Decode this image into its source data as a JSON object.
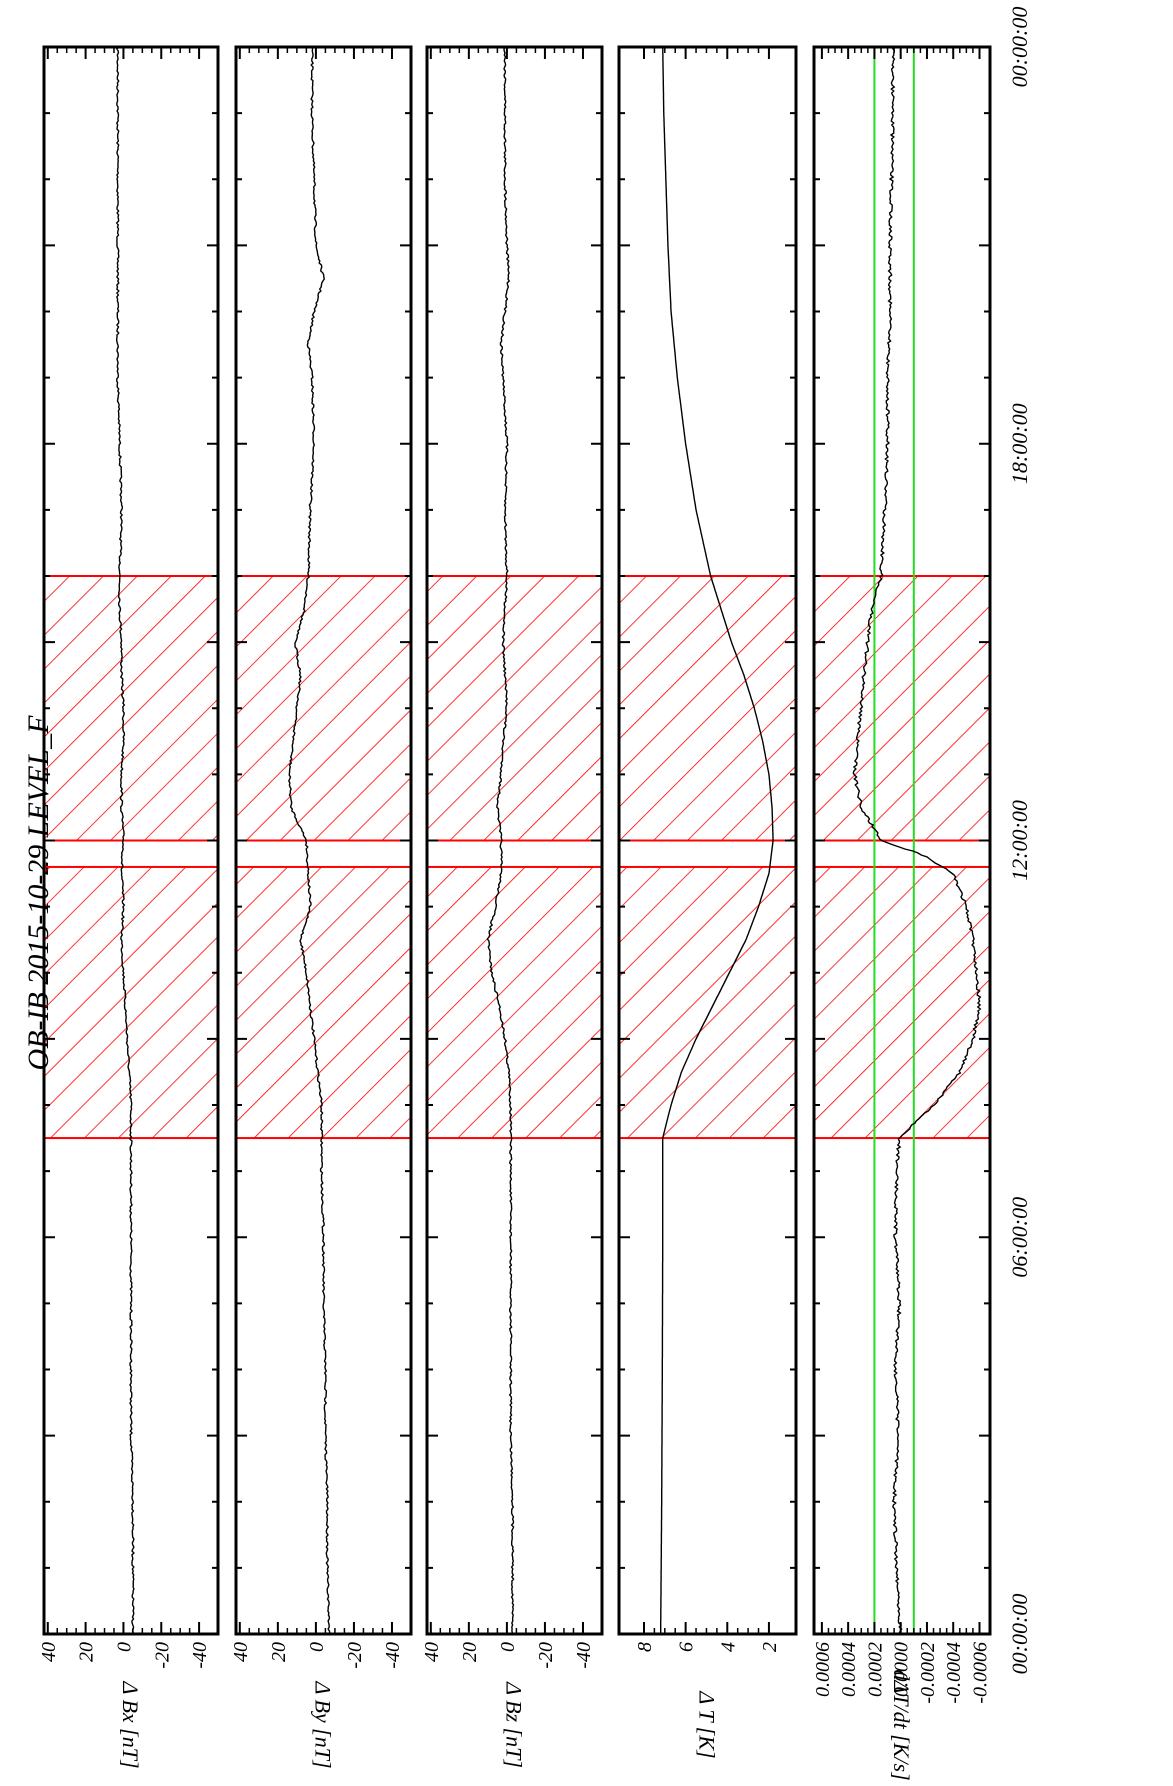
{
  "title": "OB-IB  2015-10-29 LEVEL_F",
  "time_ticks": [
    "00:00:00",
    "06:00:00",
    "12:00:00",
    "18:00:00",
    "00:00:00"
  ],
  "colors": {
    "trace": "#000000",
    "hatch": "#ff0000",
    "threshold": "#22dd22",
    "frame": "#000000"
  },
  "chart_data": [
    {
      "type": "line",
      "name": "bx",
      "ylabel": "Δ Bx [nT]",
      "yticks": [
        "40",
        "20",
        "0",
        "-20",
        "-40"
      ],
      "ylim": [
        -50,
        42
      ],
      "x_unit": "hours",
      "x": [
        0,
        1,
        2,
        3,
        4,
        5,
        6,
        7,
        8,
        8.5,
        9,
        9.5,
        10,
        10.5,
        11,
        11.5,
        12,
        12.5,
        13,
        13.5,
        14,
        14.5,
        15,
        15.5,
        16,
        17,
        18,
        19,
        20,
        21,
        22,
        23,
        24
      ],
      "values": [
        -5,
        -5,
        -5,
        -4,
        -4,
        -4,
        -4,
        -4,
        -4,
        -3,
        -2,
        -1,
        0,
        1,
        0,
        1,
        0,
        1,
        1,
        0,
        0,
        1,
        1,
        2,
        2,
        1,
        2,
        3,
        3,
        3,
        3,
        3,
        3
      ]
    },
    {
      "type": "line",
      "name": "by",
      "ylabel": "Δ By [nT]",
      "yticks": [
        "40",
        "20",
        "0",
        "-20",
        "-40"
      ],
      "ylim": [
        -50,
        42
      ],
      "x_unit": "hours",
      "x": [
        0,
        1,
        2,
        3,
        4,
        5,
        6,
        7,
        8,
        8.5,
        9,
        9.5,
        10,
        10.5,
        11,
        11.5,
        12,
        12.5,
        13,
        13.5,
        14,
        14.5,
        15,
        15.5,
        16,
        17,
        18,
        19,
        19.5,
        20,
        20.5,
        21,
        22,
        23,
        24
      ],
      "values": [
        -7,
        -6,
        -6,
        -5,
        -5,
        -4,
        -4,
        -3,
        -3,
        -1,
        1,
        3,
        5,
        8,
        3,
        4,
        5,
        13,
        14,
        12,
        10,
        8,
        11,
        6,
        4,
        3,
        1,
        2,
        4,
        1,
        -4,
        0,
        1,
        2,
        2
      ]
    },
    {
      "type": "line",
      "name": "bz",
      "ylabel": "Δ Bz [nT]",
      "yticks": [
        "40",
        "20",
        "0",
        "-20",
        "-40"
      ],
      "ylim": [
        -50,
        42
      ],
      "x_unit": "hours",
      "x": [
        0,
        1,
        2,
        3,
        4,
        5,
        6,
        7,
        8,
        8.5,
        9,
        9.5,
        10,
        10.5,
        11,
        11.5,
        12,
        12.5,
        13,
        13.5,
        14,
        14.5,
        15,
        15.5,
        16,
        17,
        18,
        19,
        19.5,
        20,
        20.5,
        21,
        22,
        23,
        24
      ],
      "values": [
        -3,
        -3,
        -3,
        -2,
        -2,
        -2,
        -2,
        -2,
        -2,
        -1,
        1,
        4,
        8,
        10,
        6,
        3,
        3,
        5,
        3,
        2,
        0,
        1,
        2,
        1,
        0,
        1,
        0,
        2,
        3,
        1,
        -1,
        0,
        1,
        1,
        1
      ]
    },
    {
      "type": "line",
      "name": "dt",
      "ylabel": "Δ T [K]",
      "yticks": [
        "8",
        "6",
        "4",
        "2"
      ],
      "ylim": [
        0.7,
        9.2
      ],
      "x_unit": "hours",
      "x": [
        0,
        2,
        4,
        6,
        7,
        7.5,
        8,
        8.5,
        9,
        9.5,
        10,
        10.5,
        11,
        11.5,
        12,
        12.5,
        13,
        13.5,
        14,
        14.5,
        15,
        15.5,
        16,
        17,
        18,
        19,
        20,
        21,
        22,
        23,
        24
      ],
      "values": [
        7.2,
        7.15,
        7.12,
        7.1,
        7.1,
        7.1,
        6.7,
        6.2,
        5.5,
        4.7,
        3.9,
        3.1,
        2.5,
        2.0,
        1.8,
        1.85,
        2.0,
        2.3,
        2.7,
        3.2,
        3.8,
        4.3,
        4.8,
        5.5,
        6.0,
        6.4,
        6.7,
        6.85,
        6.95,
        7.05,
        7.1
      ]
    },
    {
      "type": "line",
      "name": "ddt",
      "ylabel": "dΔT/dt [K/s]",
      "yticks": [
        "0.0006",
        "0.0004",
        "0.0002",
        "0.0000",
        "-0.0002",
        "-0.0004",
        "-0.0006"
      ],
      "ylim": [
        -0.00068,
        0.00066
      ],
      "threshold_lines": [
        0.0002,
        -0.0001
      ],
      "x_unit": "hours",
      "x": [
        0,
        1,
        2,
        3,
        4,
        5,
        6,
        7,
        7.5,
        8,
        8.5,
        9,
        9.5,
        10,
        10.5,
        11,
        11.5,
        11.8,
        12,
        12.5,
        13,
        13.5,
        14,
        14.5,
        15,
        15.5,
        16,
        17,
        18,
        19,
        20,
        21,
        22,
        23,
        24
      ],
      "values": [
        0.0,
        3e-05,
        5e-05,
        2e-05,
        4e-05,
        1e-05,
        4e-05,
        3e-05,
        1e-05,
        -0.00025,
        -0.00045,
        -0.00055,
        -0.0006,
        -0.00058,
        -0.00055,
        -0.0005,
        -0.0004,
        -0.00015,
        0.00015,
        0.0003,
        0.00035,
        0.00033,
        0.0003,
        0.00028,
        0.00025,
        0.00022,
        0.00015,
        0.00012,
        0.0001,
        0.0001,
        8e-05,
        8e-05,
        7e-05,
        6e-05,
        6e-05
      ]
    }
  ],
  "hatched_intervals": [
    [
      7.5,
      11.6
    ],
    [
      12.0,
      16.0
    ]
  ]
}
